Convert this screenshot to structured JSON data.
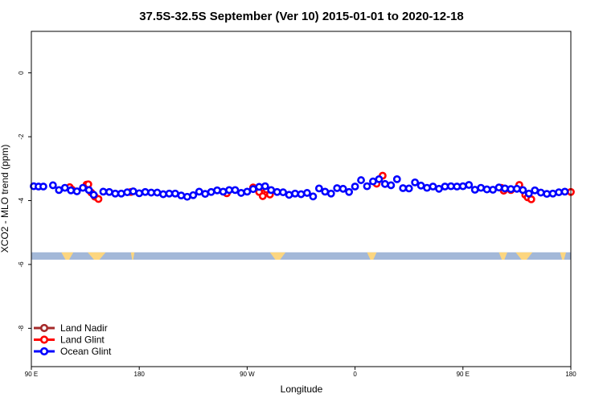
{
  "chart_data": {
    "type": "scatter",
    "title": "37.5S-32.5S September (Ver 10)   2015-01-01 to 2020-12-18",
    "xlabel": "Longitude",
    "ylabel": "XCO2 - MLO trend (ppm)",
    "xlim": [
      90,
      540
    ],
    "ylim": [
      -9.2,
      1.3
    ],
    "x_ticks": [
      {
        "value": 90,
        "label": "90 E"
      },
      {
        "value": 180,
        "label": "180"
      },
      {
        "value": 270,
        "label": "90 W"
      },
      {
        "value": 360,
        "label": "0"
      },
      {
        "value": 450,
        "label": "90 E"
      },
      {
        "value": 540,
        "label": "180"
      }
    ],
    "y_ticks": [
      {
        "value": 0,
        "label": "0"
      },
      {
        "value": -2,
        "label": "-2"
      },
      {
        "value": -4,
        "label": "-4"
      },
      {
        "value": -6,
        "label": "-6"
      },
      {
        "value": -8,
        "label": "-8"
      }
    ],
    "grid": false,
    "legend_position": "bottom-left",
    "map_strip": {
      "y_from": -5.85,
      "y_to": -5.62,
      "ocean_color": "#a3b8d8",
      "land_color": "#fcd680"
    },
    "series": [
      {
        "name": "Land Nadir",
        "color": "#a52a2a",
        "points": []
      },
      {
        "name": "Land Glint",
        "color": "#ff0000",
        "points": [
          [
            122,
            -3.58
          ],
          [
            124,
            -3.66
          ],
          [
            136,
            -3.5
          ],
          [
            137.5,
            -3.49
          ],
          [
            140,
            -3.75
          ],
          [
            143,
            -3.88
          ],
          [
            146,
            -3.95
          ],
          [
            173,
            -3.73
          ],
          [
            253,
            -3.77
          ],
          [
            275,
            -3.59
          ],
          [
            280,
            -3.73
          ],
          [
            283,
            -3.86
          ],
          [
            286,
            -3.65
          ],
          [
            289,
            -3.81
          ],
          [
            378,
            -3.47
          ],
          [
            383,
            -3.22
          ],
          [
            482,
            -3.6
          ],
          [
            484,
            -3.69
          ],
          [
            490,
            -3.67
          ],
          [
            497,
            -3.51
          ],
          [
            502,
            -3.82
          ],
          [
            504,
            -3.9
          ],
          [
            507,
            -3.96
          ],
          [
            540,
            -3.73
          ]
        ]
      },
      {
        "name": "Ocean Glint",
        "color": "#0000ff",
        "points": [
          [
            92,
            -3.55
          ],
          [
            96,
            -3.56
          ],
          [
            100,
            -3.56
          ],
          [
            108,
            -3.52
          ],
          [
            113,
            -3.67
          ],
          [
            118,
            -3.6
          ],
          [
            123,
            -3.68
          ],
          [
            128,
            -3.71
          ],
          [
            133,
            -3.6
          ],
          [
            138,
            -3.67
          ],
          [
            142,
            -3.82
          ],
          [
            150,
            -3.72
          ],
          [
            155,
            -3.73
          ],
          [
            160,
            -3.78
          ],
          [
            165,
            -3.78
          ],
          [
            170,
            -3.74
          ],
          [
            175,
            -3.71
          ],
          [
            180,
            -3.77
          ],
          [
            185,
            -3.73
          ],
          [
            190,
            -3.75
          ],
          [
            195,
            -3.75
          ],
          [
            200,
            -3.8
          ],
          [
            205,
            -3.78
          ],
          [
            210,
            -3.78
          ],
          [
            215,
            -3.84
          ],
          [
            220,
            -3.88
          ],
          [
            225,
            -3.83
          ],
          [
            230,
            -3.72
          ],
          [
            235,
            -3.79
          ],
          [
            240,
            -3.73
          ],
          [
            245,
            -3.68
          ],
          [
            250,
            -3.72
          ],
          [
            255,
            -3.67
          ],
          [
            260,
            -3.67
          ],
          [
            265,
            -3.76
          ],
          [
            270,
            -3.72
          ],
          [
            275,
            -3.64
          ],
          [
            280,
            -3.57
          ],
          [
            285,
            -3.55
          ],
          [
            290,
            -3.67
          ],
          [
            295,
            -3.73
          ],
          [
            300,
            -3.74
          ],
          [
            305,
            -3.82
          ],
          [
            310,
            -3.78
          ],
          [
            315,
            -3.8
          ],
          [
            320,
            -3.76
          ],
          [
            325,
            -3.87
          ],
          [
            330,
            -3.62
          ],
          [
            335,
            -3.72
          ],
          [
            340,
            -3.78
          ],
          [
            345,
            -3.61
          ],
          [
            350,
            -3.63
          ],
          [
            355,
            -3.73
          ],
          [
            360,
            -3.56
          ],
          [
            365,
            -3.36
          ],
          [
            370,
            -3.55
          ],
          [
            375,
            -3.4
          ],
          [
            380,
            -3.33
          ],
          [
            385,
            -3.48
          ],
          [
            390,
            -3.52
          ],
          [
            395,
            -3.33
          ],
          [
            400,
            -3.61
          ],
          [
            405,
            -3.62
          ],
          [
            410,
            -3.43
          ],
          [
            415,
            -3.53
          ],
          [
            420,
            -3.6
          ],
          [
            425,
            -3.56
          ],
          [
            430,
            -3.63
          ],
          [
            435,
            -3.56
          ],
          [
            440,
            -3.55
          ],
          [
            445,
            -3.56
          ],
          [
            450,
            -3.55
          ],
          [
            455,
            -3.51
          ],
          [
            460,
            -3.66
          ],
          [
            465,
            -3.6
          ],
          [
            470,
            -3.65
          ],
          [
            475,
            -3.66
          ],
          [
            480,
            -3.59
          ],
          [
            485,
            -3.62
          ],
          [
            490,
            -3.64
          ],
          [
            495,
            -3.63
          ],
          [
            500,
            -3.67
          ],
          [
            505,
            -3.78
          ],
          [
            510,
            -3.68
          ],
          [
            515,
            -3.75
          ],
          [
            520,
            -3.79
          ],
          [
            525,
            -3.78
          ],
          [
            530,
            -3.74
          ],
          [
            535,
            -3.72
          ]
        ]
      }
    ]
  }
}
